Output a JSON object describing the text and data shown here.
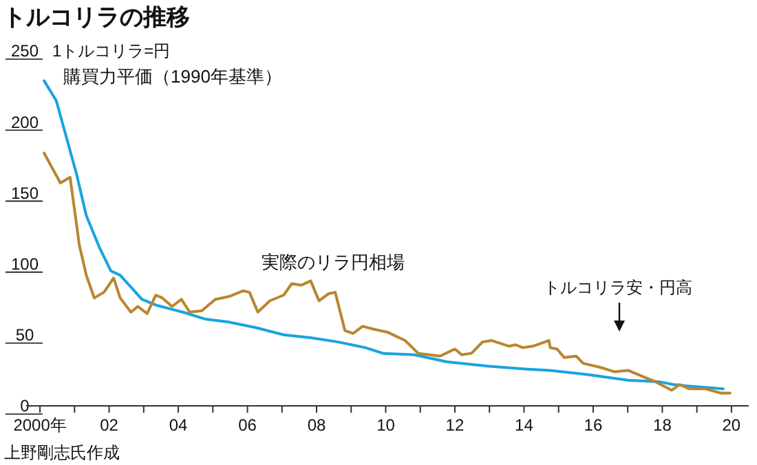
{
  "chart_data": {
    "type": "line",
    "title": "トルコリラの推移",
    "ylabel": "1トルコリラ=円",
    "xlim": [
      1999.6,
      2020.5
    ],
    "ylim": [
      0,
      250
    ],
    "yticks": [
      0,
      50,
      100,
      150,
      200,
      250
    ],
    "xticks": [
      {
        "value": 2000,
        "label": "2000年"
      },
      {
        "value": 2001,
        "label": null
      },
      {
        "value": 2002,
        "label": "02"
      },
      {
        "value": 2003,
        "label": null
      },
      {
        "value": 2004,
        "label": "04"
      },
      {
        "value": 2005,
        "label": null
      },
      {
        "value": 2006,
        "label": "06"
      },
      {
        "value": 2007,
        "label": null
      },
      {
        "value": 2008,
        "label": "08"
      },
      {
        "value": 2009,
        "label": null
      },
      {
        "value": 2010,
        "label": "10"
      },
      {
        "value": 2011,
        "label": null
      },
      {
        "value": 2012,
        "label": "12"
      },
      {
        "value": 2013,
        "label": null
      },
      {
        "value": 2014,
        "label": "14"
      },
      {
        "value": 2015,
        "label": null
      },
      {
        "value": 2016,
        "label": "16"
      },
      {
        "value": 2017,
        "label": null
      },
      {
        "value": 2018,
        "label": "18"
      },
      {
        "value": 2019,
        "label": null
      },
      {
        "value": 2020,
        "label": "20"
      }
    ],
    "grid": false,
    "marker": "none",
    "line_style": "solid",
    "series": [
      {
        "name": "購買力平価（1990年基準）",
        "color": "#1aa3e0",
        "x": [
          2000.12,
          2000.47,
          2001.06,
          2001.34,
          2001.73,
          2002.05,
          2002.32,
          2002.95,
          2003.35,
          2004.13,
          2004.8,
          2005.47,
          2006.26,
          2007.05,
          2007.83,
          2008.62,
          2009.41,
          2009.92,
          2010.83,
          2011.77,
          2012.95,
          2013.98,
          2014.76,
          2015.83,
          2017.01,
          2017.91,
          2018.31,
          2018.7,
          2019.76
        ],
        "values": [
          229,
          215,
          163,
          134,
          111,
          95,
          92,
          75,
          71,
          66,
          61,
          59,
          55,
          50,
          48,
          45,
          41,
          37,
          36,
          31,
          28,
          26,
          25,
          22,
          18,
          17,
          15,
          14,
          12
        ]
      },
      {
        "name": "実際のリラ円相場",
        "color": "#b8862e",
        "x": [
          2000.12,
          2000.59,
          2000.87,
          2001.14,
          2001.34,
          2001.57,
          2001.85,
          2002.13,
          2002.32,
          2002.63,
          2002.83,
          2003.1,
          2003.35,
          2003.54,
          2003.82,
          2004.09,
          2004.33,
          2004.68,
          2005.07,
          2005.47,
          2005.87,
          2006.06,
          2006.3,
          2006.65,
          2007.05,
          2007.28,
          2007.56,
          2007.83,
          2008.07,
          2008.35,
          2008.54,
          2008.82,
          2009.06,
          2009.33,
          2009.65,
          2009.84,
          2010.04,
          2010.56,
          2010.94,
          2011.57,
          2012.0,
          2012.2,
          2012.48,
          2012.8,
          2013.07,
          2013.57,
          2013.76,
          2013.96,
          2014.25,
          2014.72,
          2014.76,
          2014.96,
          2015.16,
          2015.51,
          2015.71,
          2016.22,
          2016.61,
          2017.01,
          2017.4,
          2017.8,
          2018.27,
          2018.5,
          2018.78,
          2019.25,
          2019.69,
          2019.96
        ],
        "values": [
          178,
          157,
          161,
          113,
          92,
          76,
          80,
          90,
          76,
          66,
          70,
          65,
          78,
          76,
          70,
          75,
          66,
          67,
          75,
          77,
          81,
          80,
          66,
          74,
          78,
          86,
          85,
          88,
          74,
          79,
          80,
          53,
          51,
          56,
          54,
          53,
          52,
          46,
          37,
          35,
          40,
          36,
          37,
          45,
          46,
          42,
          43,
          41,
          42,
          46,
          41,
          40,
          34,
          35,
          30,
          27,
          24,
          25,
          21,
          17,
          11,
          15,
          12,
          12,
          9,
          9
        ]
      }
    ],
    "annotations": [
      "トルコリラ安・円高",
      "上野剛志氏作成"
    ]
  }
}
